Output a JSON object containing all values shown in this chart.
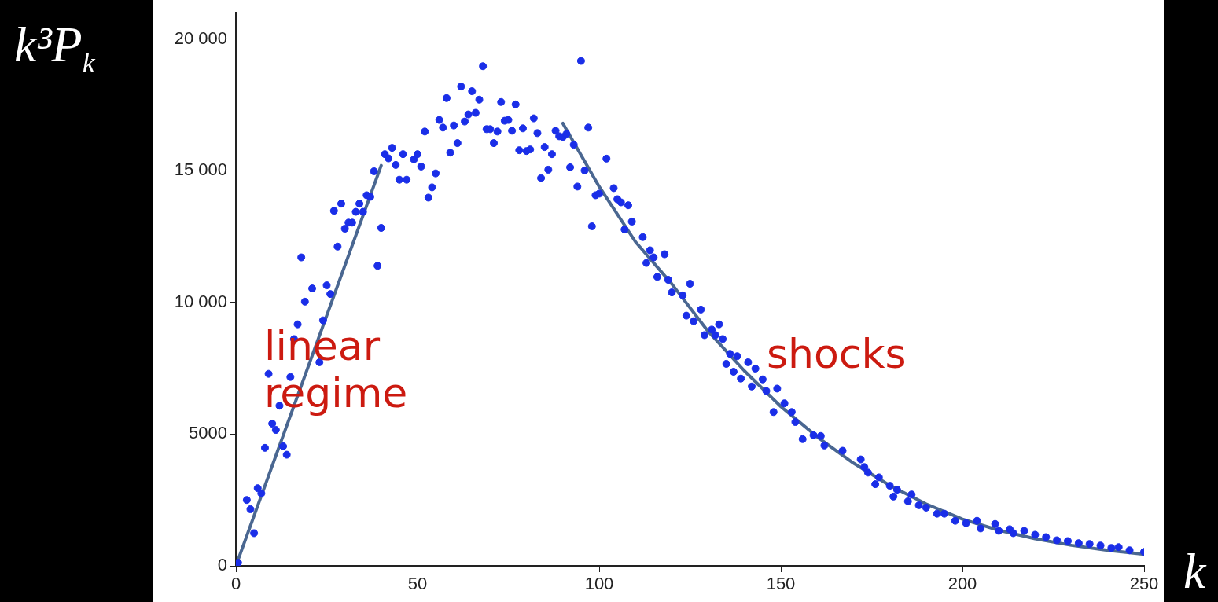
{
  "chart_data": {
    "type": "scatter",
    "xlabel": "k",
    "ylabel": "k³P$_{k}$",
    "xlim": [
      0,
      250
    ],
    "xticks": [
      0,
      50,
      100,
      150,
      200,
      250
    ],
    "ylim": [
      0,
      21000
    ],
    "yticks": [
      {
        "value": 0,
        "label": "0"
      },
      {
        "value": 5000,
        "label": "5000"
      },
      {
        "value": 10000,
        "label": "10 000"
      },
      {
        "value": 15000,
        "label": "15 000"
      },
      {
        "value": 20000,
        "label": "20 000"
      }
    ],
    "grid": false,
    "legend": false,
    "marker": "circle",
    "annotations": [
      "linear regime",
      "shocks"
    ],
    "series": [
      {
        "color": "#1a2ee8",
        "x": [
          0.6,
          3,
          4,
          5,
          6,
          7,
          8,
          9,
          10,
          11,
          12,
          13,
          14,
          15,
          16,
          17,
          18,
          19,
          21,
          23,
          24,
          25,
          26,
          27,
          28,
          29,
          30,
          31,
          32,
          33,
          34,
          35,
          36,
          37,
          38,
          39,
          40,
          41,
          42,
          43,
          44,
          45,
          46,
          47,
          49,
          50,
          51,
          52,
          53,
          54,
          55,
          56,
          57,
          58,
          59,
          60,
          61,
          62,
          63,
          64,
          65,
          66,
          67,
          68,
          69,
          70,
          71,
          72,
          73,
          74,
          75,
          76,
          77,
          78,
          79,
          80,
          81,
          82,
          83,
          84,
          85,
          86,
          87,
          88,
          89,
          90,
          91,
          92,
          93,
          94,
          95,
          96,
          97,
          98,
          99,
          100,
          102,
          104,
          105,
          106,
          107,
          108,
          109,
          112,
          113,
          114,
          115,
          116,
          118,
          119,
          120,
          123,
          124,
          125,
          126,
          128,
          129,
          131,
          132,
          133,
          134,
          135,
          136,
          137,
          138,
          139,
          141,
          142,
          143,
          145,
          146,
          148,
          149,
          151,
          153,
          154,
          156,
          159,
          161,
          162,
          167,
          172,
          173,
          174,
          176,
          177,
          180,
          181,
          182,
          185,
          186,
          188,
          190,
          193,
          195,
          198,
          201,
          204,
          205,
          209,
          210,
          213,
          214,
          217,
          220,
          223,
          226,
          229,
          232,
          235,
          238,
          241,
          243,
          246,
          250
        ],
        "values": [
          120,
          2500,
          2150,
          1240,
          2950,
          2750,
          4480,
          7290,
          5400,
          5160,
          6080,
          4540,
          4220,
          7170,
          8610,
          9170,
          11710,
          10030,
          10530,
          7730,
          9320,
          10650,
          10320,
          13480,
          12120,
          13750,
          12800,
          13030,
          13030,
          13440,
          13750,
          13440,
          14070,
          14010,
          14980,
          11390,
          12830,
          15630,
          15470,
          15870,
          15220,
          14660,
          15630,
          14660,
          15430,
          15630,
          15160,
          16490,
          13980,
          14370,
          14900,
          16930,
          16640,
          17760,
          15690,
          16720,
          16050,
          18200,
          16870,
          17140,
          18020,
          17200,
          17700,
          18970,
          16580,
          16580,
          16050,
          16490,
          17610,
          16900,
          16930,
          16520,
          17520,
          15780,
          16610,
          15750,
          15810,
          16990,
          16430,
          14720,
          15900,
          15040,
          15630,
          16520,
          16310,
          16280,
          16400,
          15130,
          15990,
          14400,
          19170,
          15010,
          16640,
          12890,
          14070,
          14130,
          15460,
          14340,
          13920,
          13800,
          12770,
          13690,
          13070,
          12480,
          11500,
          11980,
          11710,
          10970,
          11830,
          10860,
          10380,
          10270,
          9500,
          10710,
          9290,
          9730,
          8760,
          8970,
          8760,
          9170,
          8610,
          7670,
          8050,
          7370,
          7960,
          7110,
          7730,
          6810,
          7490,
          7080,
          6640,
          5840,
          6730,
          6170,
          5840,
          5460,
          4810,
          4960,
          4930,
          4570,
          4370,
          4040,
          3750,
          3540,
          3100,
          3360,
          3040,
          2630,
          2890,
          2450,
          2710,
          2300,
          2210,
          1980,
          1980,
          1710,
          1620,
          1710,
          1420,
          1590,
          1330,
          1390,
          1240,
          1330,
          1180,
          1090,
          970,
          940,
          860,
          830,
          770,
          680,
          710,
          590,
          530
        ]
      },
      {
        "type": "line",
        "color": "#4a6791",
        "marker": "none",
        "x": [
          0,
          40
        ],
        "values": [
          0,
          15200
        ]
      },
      {
        "type": "line",
        "color": "#4a6791",
        "marker": "none",
        "x": [
          90,
          100,
          110,
          120,
          130,
          140,
          150,
          160,
          170,
          180,
          190,
          200,
          210,
          220,
          230,
          240,
          250
        ],
        "values": [
          16800,
          14400,
          12300,
          10700,
          8900,
          7400,
          6050,
          4900,
          3900,
          3050,
          2350,
          1770,
          1350,
          1030,
          780,
          590,
          440
        ]
      }
    ]
  }
}
